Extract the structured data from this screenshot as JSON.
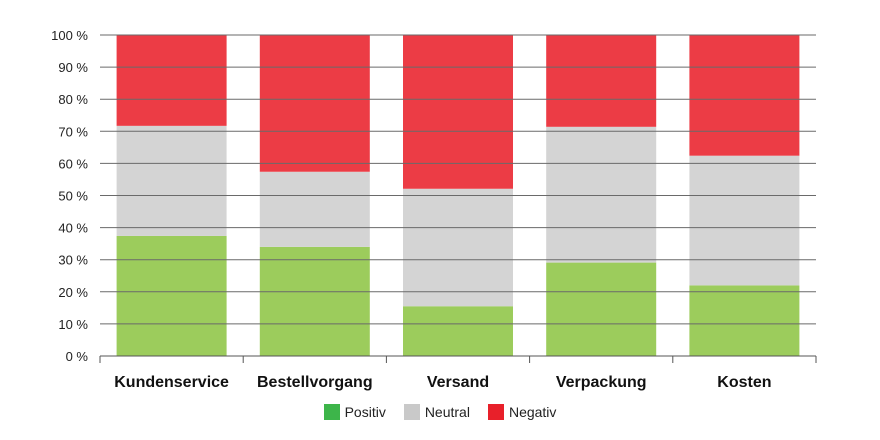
{
  "chart_data": {
    "type": "bar",
    "stacked": true,
    "categories": [
      "Kundenservice",
      "Bestellvorgang",
      "Versand",
      "Verpackung",
      "Kosten"
    ],
    "series": [
      {
        "name": "Positiv",
        "values": [
          37.4,
          34.0,
          15.5,
          29.1,
          22.0
        ],
        "color": "#9ccc5c",
        "legend_color": "#3db54a"
      },
      {
        "name": "Neutral",
        "values": [
          34.3,
          23.4,
          36.6,
          42.3,
          40.4
        ],
        "color": "#d4d4d4",
        "legend_color": "#c9c9c9"
      },
      {
        "name": "Negativ",
        "values": [
          28.3,
          42.6,
          47.9,
          28.6,
          37.6
        ],
        "color": "#ec3c45",
        "legend_color": "#e8202a"
      }
    ],
    "yticks": [
      "0 %",
      "10 %",
      "20 %",
      "30 %",
      "40 %",
      "50 %",
      "60 %",
      "70 %",
      "80 %",
      "90 %",
      "100 %"
    ],
    "ylim": [
      0,
      100
    ],
    "grid": true,
    "legend": "bottom"
  }
}
